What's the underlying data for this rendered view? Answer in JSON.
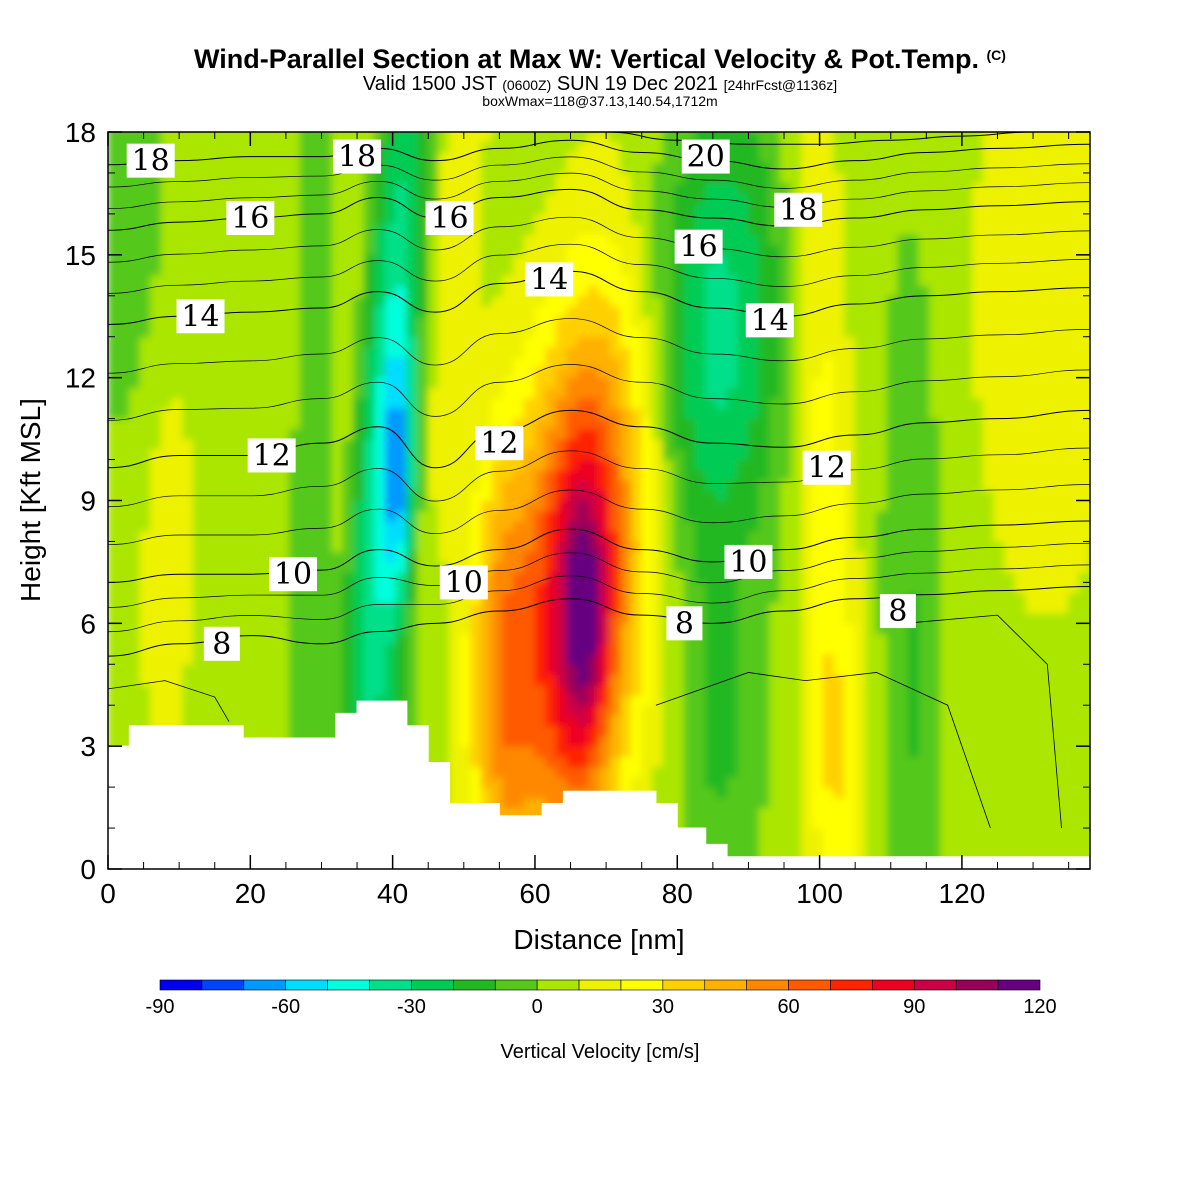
{
  "title": {
    "main": "Wind-Parallel Section at Max W: Vertical Velocity & Pot.Temp.",
    "copyright": "(C)",
    "valid_prefix": "Valid 1500 JST",
    "valid_utc": "(0600Z)",
    "valid_date": "SUN 19 Dec 2021",
    "forecast": "[24hrFcst@1136z]",
    "boxwmax": "boxWmax=118@37.13,140.54,1712m"
  },
  "chart_data": {
    "type": "heatmap",
    "xlabel": "Distance [nm]",
    "ylabel": "Height [Kft MSL]",
    "xlim": [
      0,
      138
    ],
    "ylim": [
      0,
      18
    ],
    "x_ticks": [
      0,
      20,
      40,
      60,
      80,
      100,
      120
    ],
    "y_ticks": [
      0,
      3,
      6,
      9,
      12,
      15,
      18
    ],
    "colorbar": {
      "label": "Vertical Velocity [cm/s]",
      "tick_labels": [
        "-90",
        "-60",
        "-30",
        "0",
        "30",
        "60",
        "90",
        "120"
      ],
      "tick_values": [
        -90,
        -60,
        -30,
        0,
        30,
        60,
        90,
        120
      ],
      "levels": [
        -90,
        -80,
        -70,
        -60,
        -50,
        -40,
        -30,
        -20,
        -10,
        0,
        10,
        20,
        30,
        40,
        50,
        60,
        70,
        80,
        90,
        100,
        110,
        120
      ],
      "colors": [
        "#0000ee",
        "#0044ff",
        "#0099ff",
        "#00ddff",
        "#00ffdd",
        "#00e08a",
        "#00cc55",
        "#22b822",
        "#55c81a",
        "#aae600",
        "#eef200",
        "#ffff00",
        "#ffd000",
        "#ffb000",
        "#ff8800",
        "#ff5a00",
        "#ff2400",
        "#ee0022",
        "#cc0044",
        "#99005a",
        "#660080"
      ]
    },
    "terrain_kft": [
      [
        0,
        3.0
      ],
      [
        3,
        3.0
      ],
      [
        3,
        3.5
      ],
      [
        19,
        3.5
      ],
      [
        19,
        3.2
      ],
      [
        32,
        3.2
      ],
      [
        32,
        3.8
      ],
      [
        35,
        3.8
      ],
      [
        35,
        4.1
      ],
      [
        42,
        4.1
      ],
      [
        42,
        3.5
      ],
      [
        45,
        3.5
      ],
      [
        45,
        2.6
      ],
      [
        48,
        2.6
      ],
      [
        48,
        1.6
      ],
      [
        55,
        1.6
      ],
      [
        55,
        1.3
      ],
      [
        61,
        1.3
      ],
      [
        61,
        1.6
      ],
      [
        64,
        1.6
      ],
      [
        64,
        1.9
      ],
      [
        77,
        1.9
      ],
      [
        77,
        1.6
      ],
      [
        80,
        1.6
      ],
      [
        80,
        1.0
      ],
      [
        84,
        1.0
      ],
      [
        84,
        0.6
      ],
      [
        87,
        0.6
      ],
      [
        87,
        0.3
      ],
      [
        138,
        0.3
      ]
    ],
    "theta_contours": [
      {
        "label": "8",
        "points": [
          [
            0,
            5.2
          ],
          [
            10,
            5.5
          ],
          [
            20,
            5.7
          ],
          [
            30,
            5.5
          ],
          [
            38,
            5.8
          ],
          [
            46,
            6.0
          ],
          [
            55,
            6.3
          ],
          [
            65,
            6.6
          ],
          [
            75,
            6.2
          ],
          [
            85,
            6.0
          ],
          [
            95,
            6.3
          ],
          [
            105,
            6.6
          ],
          [
            115,
            6.7
          ],
          [
            125,
            6.8
          ],
          [
            138,
            6.9
          ]
        ]
      },
      {
        "label": "10",
        "points": [
          [
            0,
            7.0
          ],
          [
            10,
            7.2
          ],
          [
            20,
            7.2
          ],
          [
            30,
            7.3
          ],
          [
            38,
            7.8
          ],
          [
            46,
            7.4
          ],
          [
            55,
            7.8
          ],
          [
            65,
            8.3
          ],
          [
            75,
            7.8
          ],
          [
            85,
            7.5
          ],
          [
            95,
            7.8
          ],
          [
            105,
            8.1
          ],
          [
            115,
            8.3
          ],
          [
            125,
            8.4
          ],
          [
            138,
            8.5
          ]
        ]
      },
      {
        "label": "12",
        "points": [
          [
            0,
            9.8
          ],
          [
            10,
            10.1
          ],
          [
            20,
            10.1
          ],
          [
            30,
            10.4
          ],
          [
            38,
            10.8
          ],
          [
            46,
            9.8
          ],
          [
            55,
            10.7
          ],
          [
            65,
            11.2
          ],
          [
            75,
            10.8
          ],
          [
            85,
            10.4
          ],
          [
            95,
            10.3
          ],
          [
            105,
            10.6
          ],
          [
            115,
            10.9
          ],
          [
            125,
            11.0
          ],
          [
            138,
            11.2
          ]
        ]
      },
      {
        "label": "14",
        "points": [
          [
            0,
            13.3
          ],
          [
            10,
            13.5
          ],
          [
            20,
            13.6
          ],
          [
            30,
            13.7
          ],
          [
            38,
            14.1
          ],
          [
            46,
            13.6
          ],
          [
            55,
            14.3
          ],
          [
            65,
            14.6
          ],
          [
            75,
            14.1
          ],
          [
            85,
            13.7
          ],
          [
            95,
            13.5
          ],
          [
            105,
            13.8
          ],
          [
            115,
            14.0
          ],
          [
            125,
            14.1
          ],
          [
            138,
            14.2
          ]
        ]
      },
      {
        "label": "16",
        "points": [
          [
            0,
            15.6
          ],
          [
            10,
            15.8
          ],
          [
            20,
            15.9
          ],
          [
            30,
            16.0
          ],
          [
            38,
            16.4
          ],
          [
            46,
            15.9
          ],
          [
            55,
            16.4
          ],
          [
            65,
            16.6
          ],
          [
            75,
            16.1
          ],
          [
            85,
            15.9
          ],
          [
            95,
            15.7
          ],
          [
            105,
            15.9
          ],
          [
            115,
            16.1
          ],
          [
            125,
            16.2
          ],
          [
            138,
            16.3
          ]
        ]
      },
      {
        "label": "18",
        "points": [
          [
            0,
            17.2
          ],
          [
            10,
            17.3
          ],
          [
            20,
            17.4
          ],
          [
            30,
            17.4
          ],
          [
            38,
            17.6
          ],
          [
            46,
            17.3
          ],
          [
            55,
            17.6
          ],
          [
            65,
            17.8
          ],
          [
            75,
            17.5
          ],
          [
            85,
            17.3
          ],
          [
            95,
            17.1
          ],
          [
            105,
            17.3
          ],
          [
            115,
            17.5
          ],
          [
            125,
            17.6
          ],
          [
            138,
            17.7
          ]
        ]
      },
      {
        "label": "20",
        "points": [
          [
            70,
            18.0
          ],
          [
            80,
            17.8
          ],
          [
            90,
            17.7
          ],
          [
            100,
            17.7
          ],
          [
            110,
            17.8
          ],
          [
            120,
            17.9
          ],
          [
            130,
            18.0
          ]
        ]
      }
    ],
    "theta_labels": [
      {
        "text": "18",
        "x": 6,
        "y": 17.3
      },
      {
        "text": "18",
        "x": 35,
        "y": 17.4
      },
      {
        "text": "16",
        "x": 20,
        "y": 15.9
      },
      {
        "text": "16",
        "x": 48,
        "y": 15.9
      },
      {
        "text": "14",
        "x": 13,
        "y": 13.5
      },
      {
        "text": "14",
        "x": 62,
        "y": 14.4
      },
      {
        "text": "14",
        "x": 93,
        "y": 13.4
      },
      {
        "text": "12",
        "x": 23,
        "y": 10.1
      },
      {
        "text": "12",
        "x": 55,
        "y": 10.4
      },
      {
        "text": "12",
        "x": 101,
        "y": 9.8
      },
      {
        "text": "10",
        "x": 26,
        "y": 7.2
      },
      {
        "text": "10",
        "x": 50,
        "y": 7.0
      },
      {
        "text": "10",
        "x": 90,
        "y": 7.5
      },
      {
        "text": "8",
        "x": 16,
        "y": 5.5
      },
      {
        "text": "8",
        "x": 81,
        "y": 6.0
      },
      {
        "text": "8",
        "x": 111,
        "y": 6.3
      },
      {
        "text": "20",
        "x": 84,
        "y": 17.4
      },
      {
        "text": "16",
        "x": 83,
        "y": 15.2
      },
      {
        "text": "18",
        "x": 97,
        "y": 16.1
      }
    ]
  }
}
